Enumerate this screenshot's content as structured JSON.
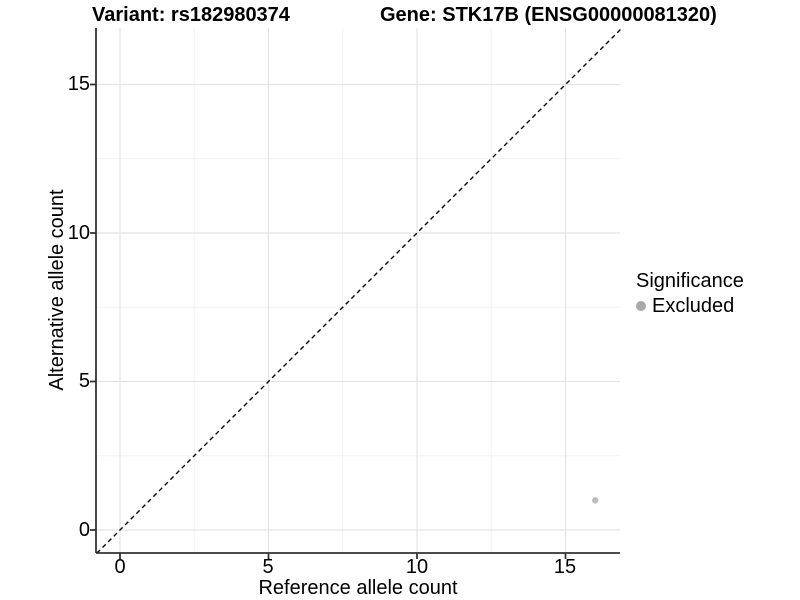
{
  "chart_data": {
    "type": "scatter",
    "titles": {
      "variant": "Variant: rs182980374",
      "gene": "Gene: STK17B (ENSG00000081320)"
    },
    "xlabel": "Reference allele count",
    "ylabel": "Alternative allele count",
    "x_ticks": [
      0,
      5,
      10,
      15
    ],
    "y_ticks": [
      0,
      5,
      10,
      15
    ],
    "minor_ticks": [
      2.5,
      7.5,
      12.5
    ],
    "xlim": [
      -0.78,
      16.9
    ],
    "ylim": [
      -0.78,
      16.9
    ],
    "grid": "on",
    "identity_line": {
      "style": "dashed",
      "equation": "y = x",
      "from": -0.78,
      "to": 16.85
    },
    "series": [
      {
        "name": "Excluded",
        "color": "#bdbdbd",
        "points": [
          {
            "x": 16,
            "y": 1
          }
        ]
      }
    ],
    "legend": {
      "title": "Significance",
      "position": "right",
      "items": [
        {
          "label": "Excluded",
          "color": "#a9a9a9"
        }
      ]
    }
  },
  "colors": {
    "background": "#ffffff",
    "axis_line": "#333333",
    "tick_mark": "#333333",
    "major_grid": "#e4e4e4",
    "minor_grid": "#f2f2f2",
    "identity_line": "#000000",
    "text": "#000000"
  }
}
